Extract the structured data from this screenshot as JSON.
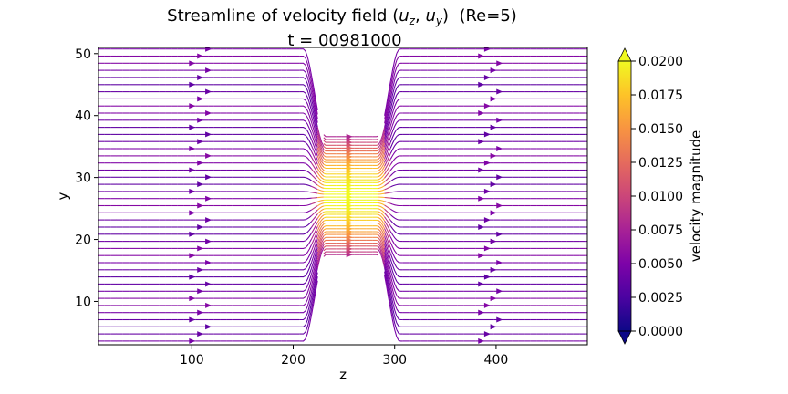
{
  "chart_data": {
    "type": "streamline",
    "title_main": "Streamline of velocity field ",
    "title_symbols": "(u_z, u_y)",
    "title_re": "(Re=5)",
    "subtitle": "t = 00981000",
    "xlabel": "z",
    "ylabel": "y",
    "xlim": [
      8,
      490
    ],
    "ylim": [
      3,
      51
    ],
    "xticks": [
      100,
      200,
      300,
      400
    ],
    "yticks": [
      10,
      20,
      30,
      40,
      50
    ],
    "obstacles": [
      {
        "z_from": 225,
        "z_to": 290,
        "y_from": 37,
        "y_to": 51
      },
      {
        "z_from": 225,
        "z_to": 290,
        "y_from": 3,
        "y_to": 17
      }
    ],
    "gap": {
      "y_from": 17,
      "y_to": 37
    },
    "peak_velocity_y": 27,
    "colorbar": {
      "label": "velocity magnitude",
      "colormap": "plasma",
      "range": [
        0.0,
        0.02
      ],
      "ticks": [
        "0.0000",
        "0.0025",
        "0.0050",
        "0.0075",
        "0.0100",
        "0.0125",
        "0.0150",
        "0.0175",
        "0.0200"
      ],
      "extend": "both"
    },
    "grid": false
  }
}
